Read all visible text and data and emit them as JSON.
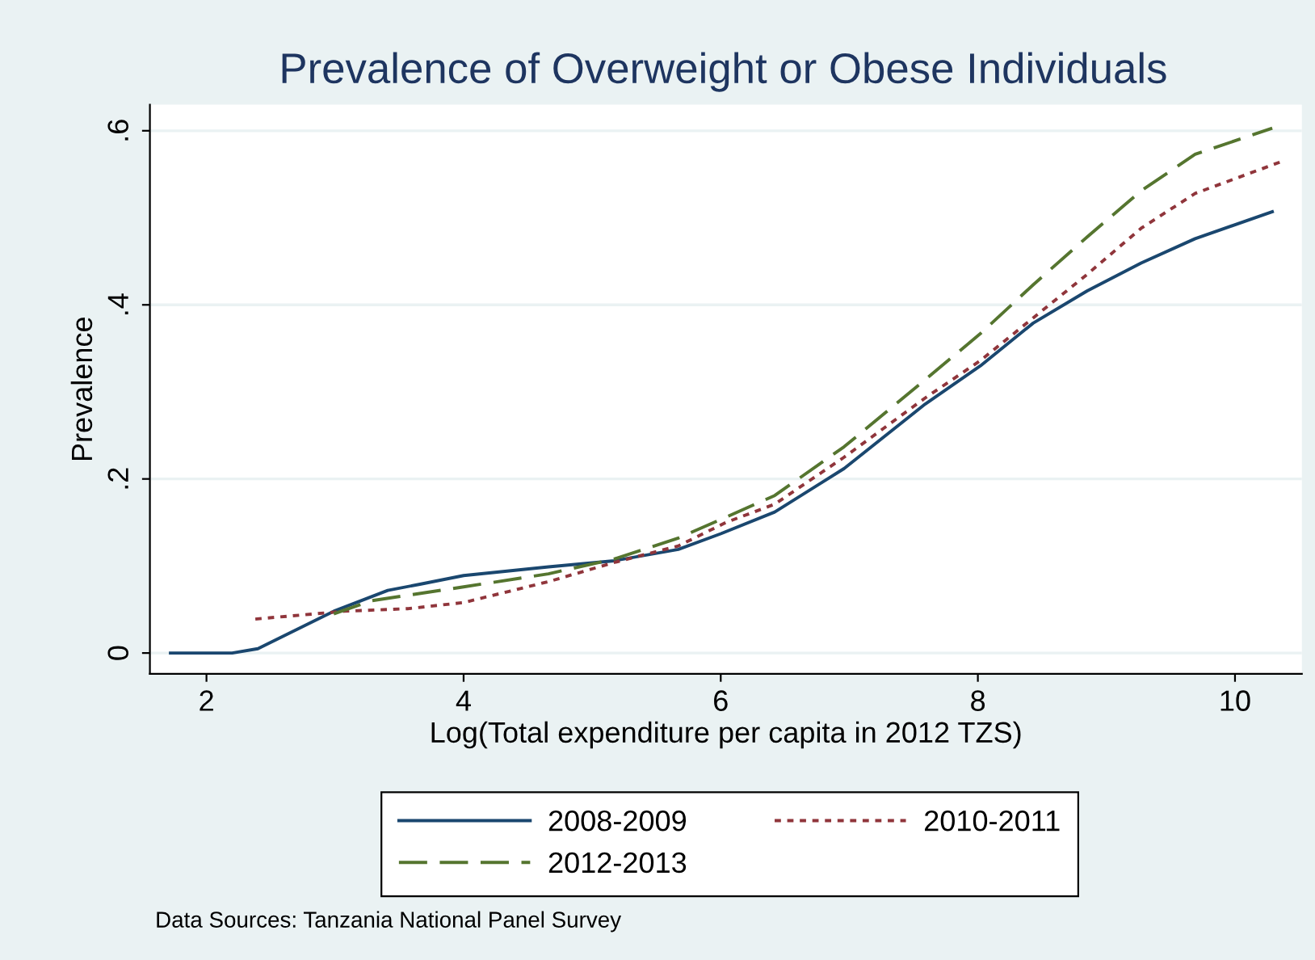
{
  "chart_data": {
    "type": "line",
    "title": "Prevalence of Overweight or Obese Individuals",
    "xlabel": "Log(Total expenditure per capita in 2012 TZS)",
    "ylabel": "Prevalence",
    "xlim": [
      1.56,
      10.52
    ],
    "xticks": [
      2,
      4,
      6,
      8,
      10
    ],
    "ylim": [
      -0.024,
      0.63
    ],
    "yticks": [
      0,
      {
        "value": 0.2,
        "label": ".2"
      },
      {
        "value": 0.4,
        "label": ".4"
      },
      {
        "value": 0.6,
        "label": ".6"
      }
    ],
    "grid": "y",
    "legend": "bottom",
    "marker": "none",
    "annotations": [
      "Data Sources: Tanzania National Panel Survey"
    ],
    "series": [
      {
        "name": "2008-2009",
        "color": "#1a476f",
        "line_style": "solid",
        "x": [
          1.72,
          2.2,
          2.4,
          2.99,
          3.41,
          3.66,
          4.0,
          4.66,
          5.17,
          5.67,
          6.0,
          6.42,
          6.96,
          7.59,
          8.02,
          8.43,
          8.85,
          9.27,
          9.69,
          10.29
        ],
        "values": [
          0,
          0,
          0.005,
          0.048,
          0.072,
          0.079,
          0.089,
          0.099,
          0.106,
          0.119,
          0.137,
          0.162,
          0.212,
          0.286,
          0.33,
          0.379,
          0.416,
          0.448,
          0.476,
          0.507
        ]
      },
      {
        "name": "2010-2011",
        "color": "#90353b",
        "line_style": "dotted",
        "x": [
          2.38,
          3.07,
          3.57,
          4.0,
          4.66,
          5.17,
          5.67,
          6.04,
          6.42,
          6.96,
          7.59,
          8.02,
          8.43,
          8.85,
          9.27,
          9.69,
          10.35
        ],
        "values": [
          0.039,
          0.048,
          0.051,
          0.058,
          0.082,
          0.104,
          0.123,
          0.15,
          0.171,
          0.225,
          0.293,
          0.336,
          0.385,
          0.435,
          0.488,
          0.528,
          0.564
        ]
      },
      {
        "name": "2012-2013",
        "color": "#55752f",
        "line_style": "dashed",
        "x": [
          2.99,
          3.28,
          4.0,
          4.66,
          5.17,
          5.67,
          6.04,
          6.42,
          6.96,
          7.59,
          8.02,
          8.43,
          8.85,
          9.27,
          9.69,
          10.29
        ],
        "values": [
          0.045,
          0.06,
          0.076,
          0.091,
          0.108,
          0.132,
          0.156,
          0.181,
          0.237,
          0.314,
          0.367,
          0.423,
          0.478,
          0.531,
          0.573,
          0.603
        ]
      }
    ]
  }
}
